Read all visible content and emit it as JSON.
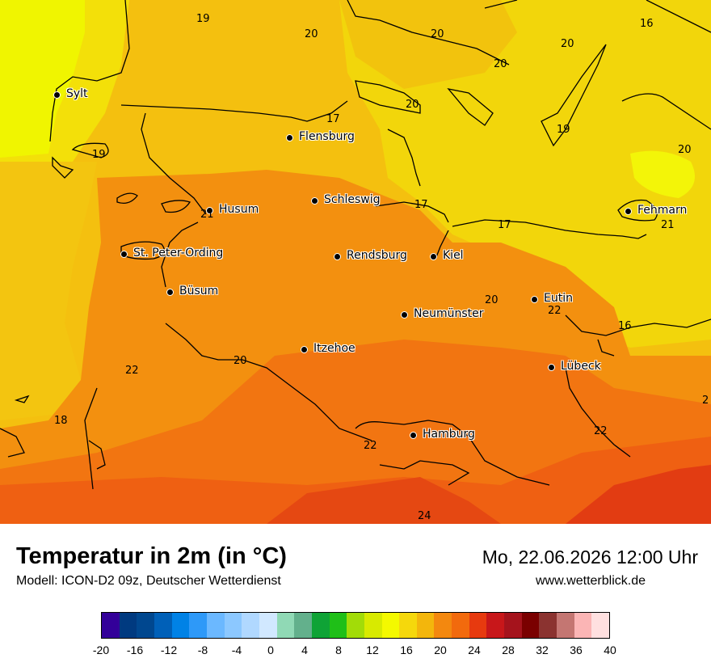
{
  "header": {
    "title": "Temperatur in 2m (in °C)",
    "model": "Modell: ICON-D2 09z, Deutscher Wetterdienst",
    "datetime": "Mo, 22.06.2026 12:00 Uhr",
    "website": "www.wetterblick.de"
  },
  "map": {
    "cities": [
      {
        "name": "Sylt"
      },
      {
        "name": "Flensburg"
      },
      {
        "name": "Schleswig"
      },
      {
        "name": "Husum"
      },
      {
        "name": "St. Peter-Ording"
      },
      {
        "name": "Rendsburg"
      },
      {
        "name": "Kiel"
      },
      {
        "name": "Büsum"
      },
      {
        "name": "Neumünster"
      },
      {
        "name": "Eutin"
      },
      {
        "name": "Itzehoe"
      },
      {
        "name": "Lübeck"
      },
      {
        "name": "Hamburg"
      },
      {
        "name": "Fehmarn"
      }
    ],
    "temperature_labels": [
      "19",
      "20",
      "20",
      "20",
      "20",
      "16",
      "20",
      "17",
      "19",
      "19",
      "20",
      "17",
      "17",
      "21",
      "21",
      "20",
      "22",
      "16",
      "20",
      "22",
      "2",
      "18",
      "22",
      "22",
      "24"
    ]
  },
  "legend": {
    "colors": [
      "#330099",
      "#003a80",
      "#00478f",
      "#0060b8",
      "#0082e6",
      "#2e99f8",
      "#6bb8ff",
      "#8cc8ff",
      "#b0d8ff",
      "#d1e8ff",
      "#90d9b5",
      "#63b08c",
      "#0fa336",
      "#1fbf18",
      "#a2dc08",
      "#d8ea00",
      "#f4f900",
      "#f5d80c",
      "#f3b60c",
      "#f3880f",
      "#f26a0d",
      "#e73a0f",
      "#c8171a",
      "#a5131c",
      "#7a0000",
      "#8b3330",
      "#c47672",
      "#fbb5b5",
      "#ffe0e0"
    ],
    "ticks": [
      "-20",
      "-16",
      "-12",
      "-8",
      "-4",
      "0",
      "4",
      "8",
      "12",
      "16",
      "20",
      "24",
      "28",
      "32",
      "36",
      "40"
    ]
  }
}
